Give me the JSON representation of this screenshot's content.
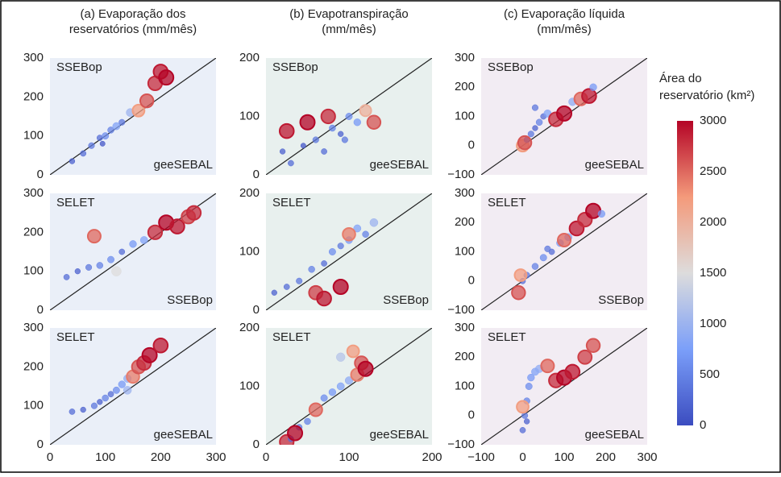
{
  "chart_data": [
    {
      "type": "scatter",
      "title": [
        "(a) Evaporação dos",
        "reservatórios (mm/mês)"
      ],
      "ylabel": "SSEBop",
      "xlabel": "geeSEBAL",
      "x": [
        40,
        60,
        75,
        90,
        100,
        110,
        120,
        130,
        145,
        160,
        175,
        190,
        200,
        210,
        95
      ],
      "y": [
        35,
        55,
        75,
        95,
        100,
        115,
        125,
        135,
        160,
        165,
        190,
        235,
        265,
        250,
        80
      ],
      "area": [
        200,
        300,
        400,
        300,
        600,
        500,
        800,
        400,
        1000,
        2200,
        2600,
        2800,
        2900,
        3000,
        100
      ],
      "xlim": [
        0,
        300
      ],
      "ylim": [
        0,
        300
      ],
      "yticks": [
        0,
        100,
        200,
        300
      ]
    },
    {
      "type": "scatter",
      "title": [
        "(b) Evapotranspiração",
        "(mm/mês)"
      ],
      "ylabel": "SSEBop",
      "xlabel": "geeSEBAL",
      "x": [
        20,
        30,
        45,
        60,
        70,
        80,
        90,
        100,
        110,
        120,
        130,
        25,
        50,
        75,
        95
      ],
      "y": [
        40,
        20,
        50,
        60,
        40,
        80,
        70,
        100,
        90,
        110,
        90,
        75,
        90,
        100,
        60
      ],
      "area": [
        200,
        300,
        100,
        400,
        300,
        500,
        200,
        600,
        700,
        2000,
        2600,
        2900,
        3000,
        2800,
        400
      ],
      "xlim": [
        0,
        200
      ],
      "ylim": [
        0,
        200
      ],
      "yticks": [
        0,
        100,
        200
      ]
    },
    {
      "type": "scatter",
      "title": [
        "(c) Evaporação líquida",
        "(mm/mês)"
      ],
      "ylabel": "SSEBop",
      "xlabel": "geeSEBAL",
      "x": [
        0,
        10,
        20,
        30,
        40,
        50,
        60,
        80,
        100,
        120,
        140,
        160,
        170,
        5,
        30
      ],
      "y": [
        0,
        20,
        40,
        60,
        80,
        100,
        110,
        90,
        110,
        150,
        160,
        170,
        200,
        10,
        130
      ],
      "area": [
        2200,
        300,
        400,
        200,
        500,
        300,
        800,
        2800,
        3000,
        900,
        2500,
        2900,
        700,
        2600,
        400
      ],
      "xlim": [
        -100,
        300
      ],
      "ylim": [
        -100,
        300
      ],
      "yticks": [
        {
          "value": -100,
          "label": "−100"
        },
        0,
        100,
        200,
        300
      ]
    },
    {
      "type": "scatter",
      "ylabel": "SELET",
      "xlabel": "SSEBop",
      "x": [
        30,
        50,
        70,
        90,
        110,
        130,
        150,
        170,
        190,
        210,
        230,
        250,
        260,
        80,
        120
      ],
      "y": [
        85,
        100,
        110,
        115,
        130,
        150,
        170,
        180,
        200,
        225,
        215,
        240,
        250,
        190,
        100
      ],
      "area": [
        300,
        200,
        400,
        500,
        600,
        300,
        700,
        800,
        2800,
        3000,
        2900,
        2700,
        2800,
        2500,
        1500
      ],
      "xlim": [
        0,
        300
      ],
      "ylim": [
        0,
        300
      ],
      "yticks": [
        0,
        100,
        200,
        300
      ]
    },
    {
      "type": "scatter",
      "ylabel": "SELET",
      "xlabel": "SSEBop",
      "x": [
        10,
        25,
        40,
        55,
        70,
        80,
        90,
        100,
        110,
        120,
        60,
        70,
        90,
        100,
        130
      ],
      "y": [
        30,
        40,
        50,
        70,
        80,
        100,
        110,
        120,
        140,
        130,
        30,
        20,
        40,
        130,
        150
      ],
      "area": [
        200,
        300,
        400,
        500,
        300,
        600,
        400,
        700,
        800,
        500,
        2700,
        2900,
        3000,
        2400,
        1000
      ],
      "xlim": [
        0,
        200
      ],
      "ylim": [
        0,
        200
      ],
      "yticks": [
        0,
        100,
        200
      ]
    },
    {
      "type": "scatter",
      "ylabel": "SELET",
      "xlabel": "SSEBop",
      "x": [
        -10,
        0,
        10,
        30,
        50,
        70,
        90,
        110,
        130,
        150,
        170,
        190,
        -5,
        60,
        100
      ],
      "y": [
        -40,
        0,
        20,
        50,
        80,
        100,
        130,
        150,
        180,
        210,
        240,
        230,
        20,
        110,
        140
      ],
      "area": [
        2600,
        300,
        400,
        500,
        600,
        300,
        700,
        800,
        2900,
        2800,
        3000,
        700,
        2200,
        400,
        2500
      ],
      "xlim": [
        -100,
        300
      ],
      "ylim": [
        -100,
        300
      ],
      "yticks": [
        {
          "value": -100,
          "label": "−100"
        },
        0,
        100,
        200,
        300
      ]
    },
    {
      "type": "scatter",
      "ylabel": "SELET",
      "xlabel": "geeSEBAL",
      "x": [
        40,
        60,
        80,
        100,
        110,
        120,
        130,
        140,
        150,
        160,
        170,
        180,
        200,
        90,
        140
      ],
      "y": [
        85,
        90,
        100,
        120,
        130,
        140,
        155,
        170,
        175,
        200,
        210,
        230,
        255,
        110,
        140
      ],
      "area": [
        300,
        200,
        400,
        500,
        300,
        600,
        700,
        900,
        2400,
        2600,
        2800,
        3000,
        2900,
        200,
        1000
      ],
      "xlim": [
        0,
        300
      ],
      "ylim": [
        0,
        300
      ],
      "yticks": [
        0,
        100,
        200,
        300
      ],
      "xticks": [
        0,
        100,
        200,
        300
      ]
    },
    {
      "type": "scatter",
      "ylabel": "SELET",
      "xlabel": "geeSEBAL",
      "x": [
        25,
        30,
        40,
        50,
        60,
        70,
        80,
        90,
        100,
        110,
        115,
        120,
        105,
        90,
        35
      ],
      "y": [
        5,
        10,
        30,
        40,
        60,
        80,
        90,
        100,
        110,
        120,
        140,
        130,
        160,
        150,
        20
      ],
      "area": [
        2800,
        300,
        400,
        500,
        2500,
        600,
        700,
        800,
        900,
        2400,
        2600,
        3000,
        2200,
        1200,
        3000
      ],
      "xlim": [
        0,
        200
      ],
      "ylim": [
        0,
        200
      ],
      "yticks": [
        0,
        100,
        200
      ],
      "xticks": [
        0,
        100,
        200
      ]
    },
    {
      "type": "scatter",
      "ylabel": "SELET",
      "xlabel": "geeSEBAL",
      "x": [
        0,
        5,
        10,
        15,
        20,
        30,
        40,
        60,
        80,
        100,
        120,
        150,
        170,
        10,
        0
      ],
      "y": [
        -50,
        0,
        50,
        100,
        130,
        150,
        160,
        170,
        120,
        130,
        150,
        200,
        240,
        -20,
        30
      ],
      "area": [
        300,
        400,
        500,
        600,
        700,
        800,
        900,
        2500,
        2800,
        3000,
        2900,
        2700,
        2600,
        200,
        2200
      ],
      "xlim": [
        -100,
        300
      ],
      "ylim": [
        -100,
        300
      ],
      "yticks": [
        {
          "value": -100,
          "label": "−100"
        },
        0,
        100,
        200,
        300
      ],
      "xticks": [
        {
          "value": -100,
          "label": "−100"
        },
        0,
        100,
        200,
        300
      ]
    }
  ],
  "colorbar": {
    "title": [
      "Área do",
      "reservatório (km²)"
    ],
    "lim": [
      0,
      3000
    ],
    "ticks": [
      0,
      500,
      1000,
      1500,
      2000,
      2500,
      3000
    ]
  }
}
